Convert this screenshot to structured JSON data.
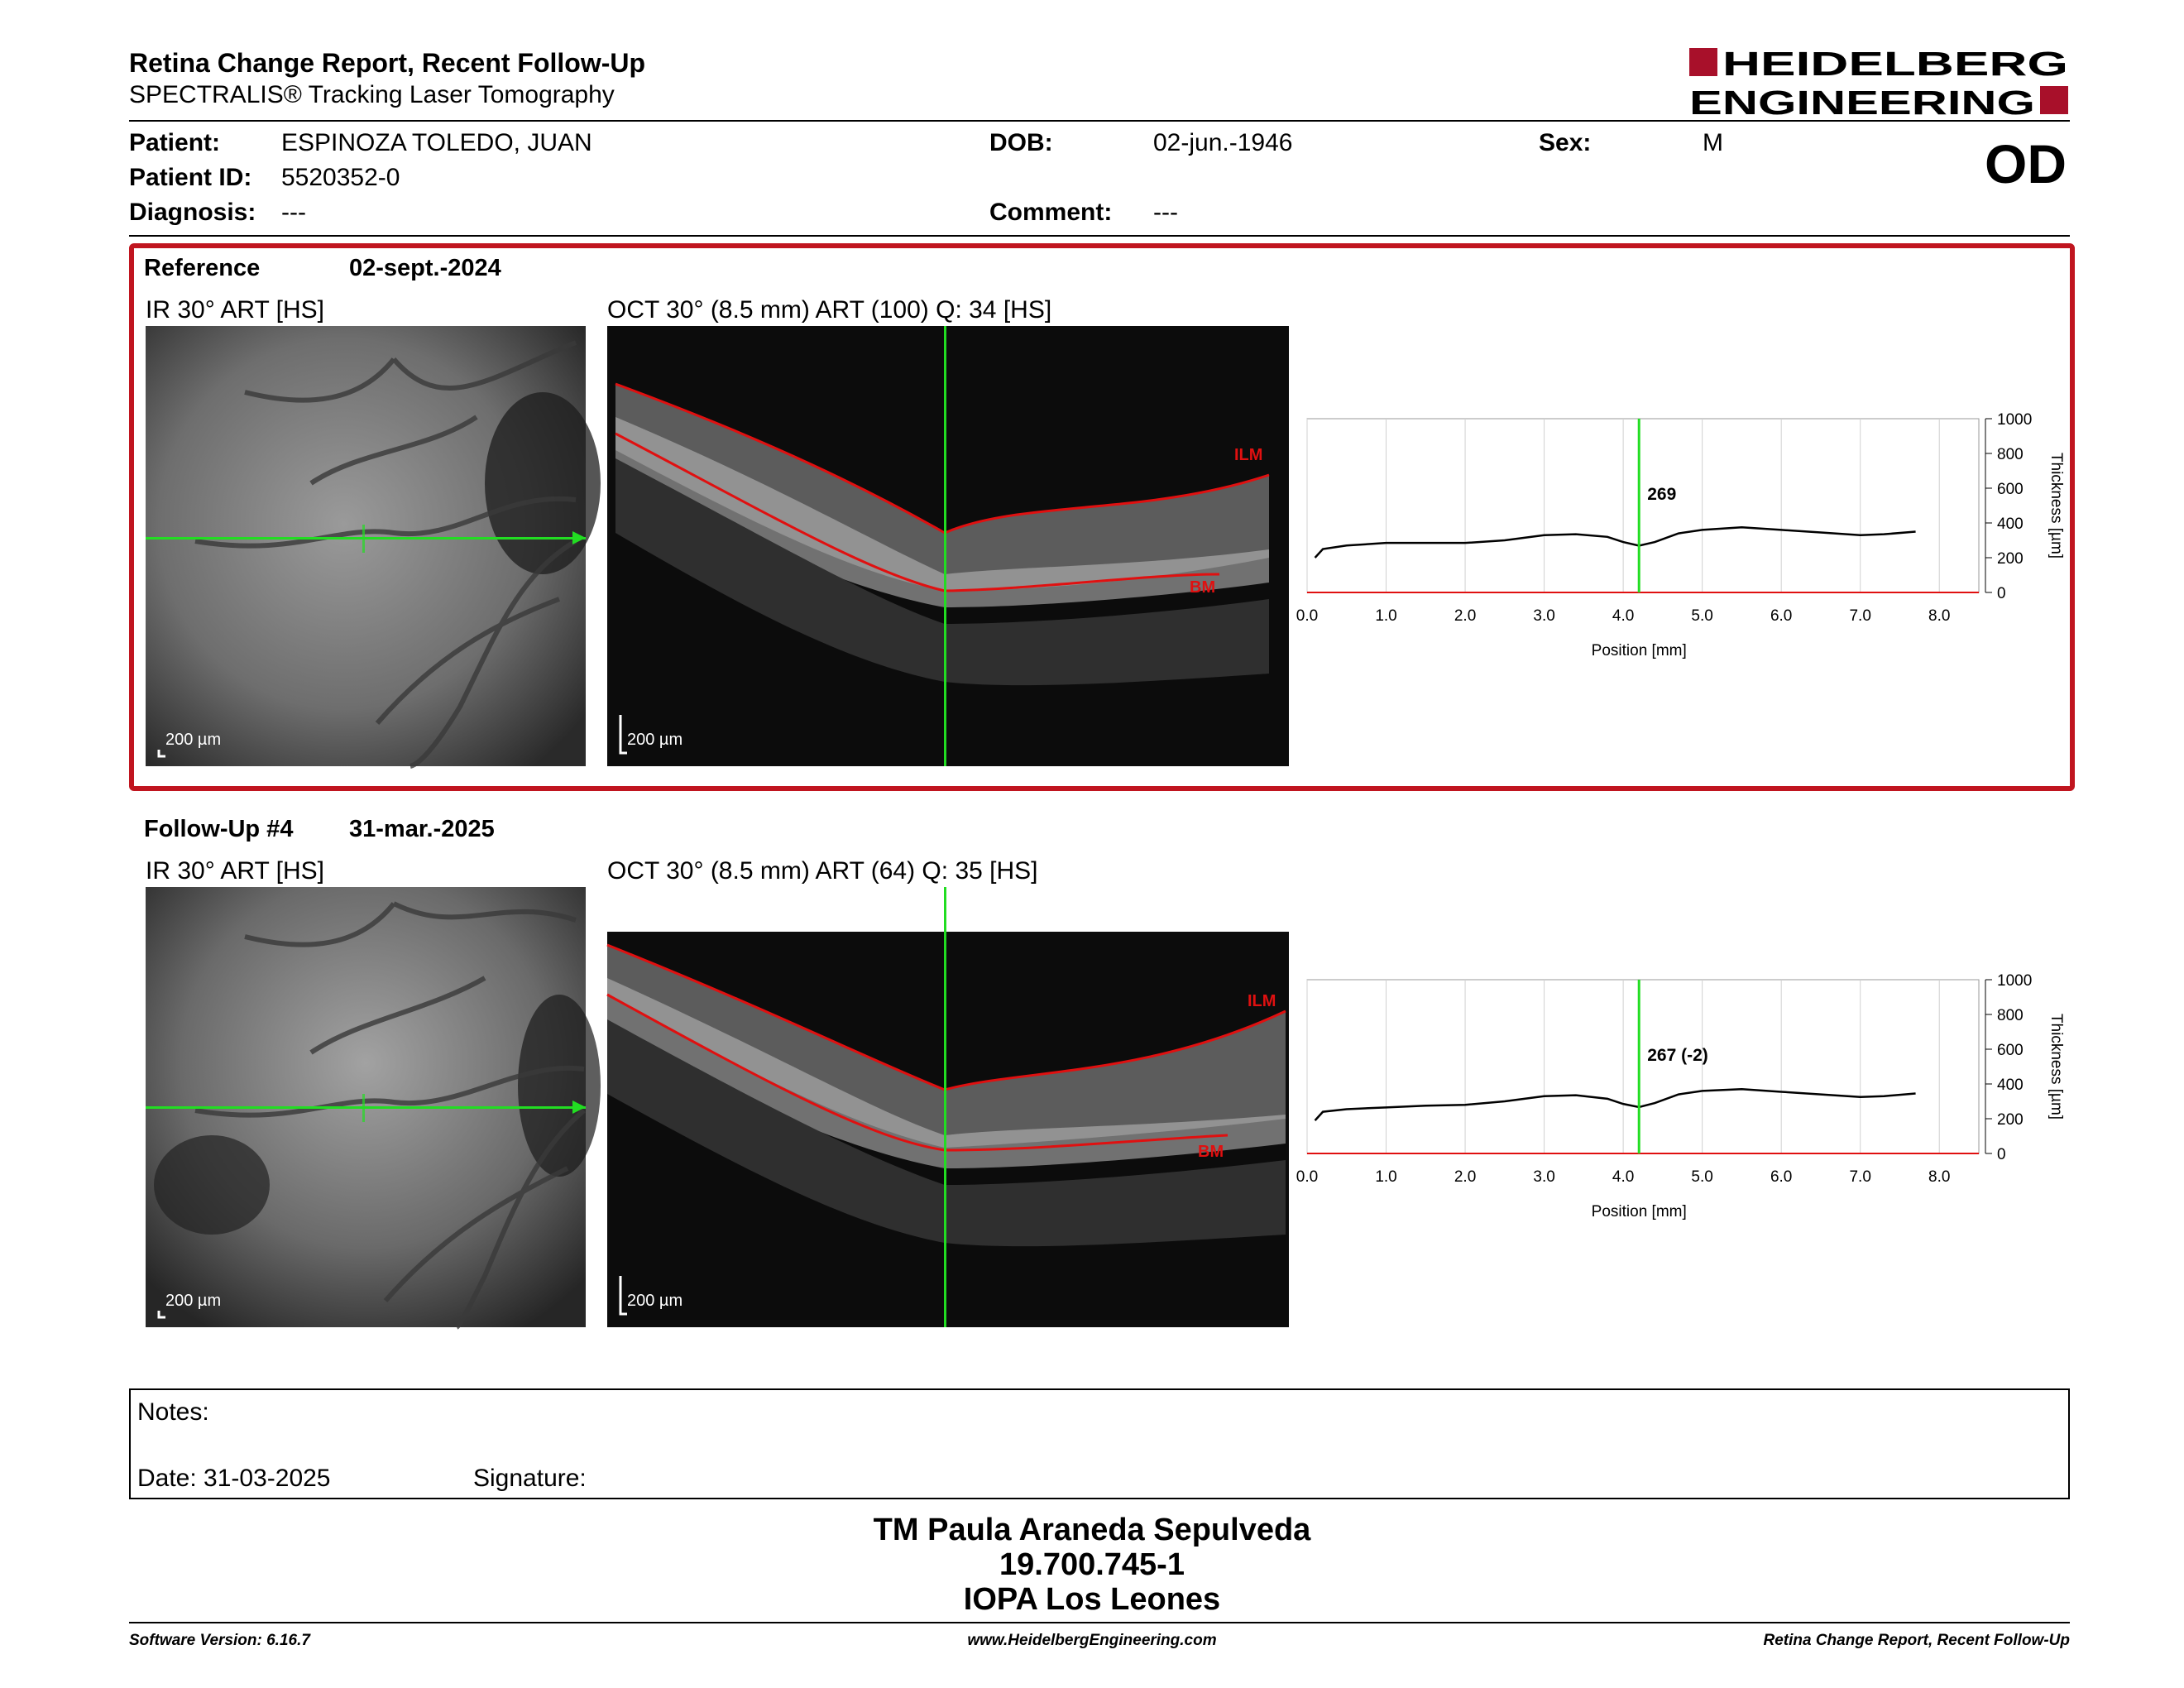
{
  "header": {
    "title": "Retina Change Report, Recent Follow-Up",
    "subtitle": "SPECTRALIS® Tracking Laser Tomography",
    "logo_line1": "HEIDELBERG",
    "logo_line2": "ENGINEERING",
    "eye": "OD"
  },
  "patient": {
    "name_label": "Patient:",
    "name": "ESPINOZA TOLEDO, JUAN",
    "id_label": "Patient ID:",
    "id": "5520352-0",
    "diagnosis_label": "Diagnosis:",
    "diagnosis": "---",
    "dob_label": "DOB:",
    "dob": "02-jun.-1946",
    "comment_label": "Comment:",
    "comment": "---",
    "sex_label": "Sex:",
    "sex": "M"
  },
  "reference": {
    "label": "Reference",
    "date": "02-sept.-2024",
    "ir_label": "IR 30° ART [HS]",
    "oct_label": "OCT 30° (8.5 mm) ART (100) Q: 34 [HS]",
    "scale_ir": "200 µm",
    "scale_oct": "200 µm",
    "layer_top": "ILM",
    "layer_bottom": "BM"
  },
  "followup": {
    "label": "Follow-Up #4",
    "date": "31-mar.-2025",
    "ir_label": "IR 30° ART [HS]",
    "oct_label": "OCT 30° (8.5 mm) ART (64) Q: 35 [HS]",
    "scale_ir": "200 µm",
    "scale_oct": "200 µm",
    "layer_top": "ILM",
    "layer_bottom": "BM"
  },
  "notes": {
    "label": "Notes:",
    "date": "Date: 31-03-2025",
    "signature": "Signature:"
  },
  "signer": {
    "name": "TM Paula Araneda Sepulveda",
    "id": "19.700.745-1",
    "institution": "IOPA Los Leones"
  },
  "footer": {
    "software": "Software Version: 6.16.7",
    "website": "www.HeidelbergEngineering.com",
    "report": "Retina Change Report, Recent Follow-Up"
  },
  "colors": {
    "frame": "#c0151f",
    "logo": "#a8102a",
    "scan_line": "#22dd22",
    "segmentation": "#e01010"
  },
  "chart_data": [
    {
      "type": "line",
      "name": "reference-thickness",
      "xlabel": "Position [mm]",
      "ylabel": "Thickness [µm]",
      "xlim": [
        0,
        8.5
      ],
      "ylim": [
        0,
        1000
      ],
      "xticks": [
        "0.0",
        "1.0",
        "2.0",
        "3.0",
        "4.0",
        "5.0",
        "6.0",
        "7.0",
        "8.0"
      ],
      "yticks": [
        "0",
        "200",
        "400",
        "600",
        "800",
        "1000"
      ],
      "grid": true,
      "marker_x": 4.2,
      "marker_label": "269",
      "series": [
        {
          "x": [
            0.1,
            0.2,
            0.5,
            1.0,
            1.5,
            2.0,
            2.5,
            3.0,
            3.4,
            3.8,
            4.0,
            4.2,
            4.4,
            4.7,
            5.0,
            5.5,
            6.0,
            6.5,
            7.0,
            7.3,
            7.7
          ],
          "values": [
            200,
            250,
            270,
            285,
            285,
            285,
            300,
            330,
            335,
            320,
            290,
            269,
            290,
            340,
            360,
            375,
            360,
            345,
            330,
            335,
            350
          ]
        }
      ]
    },
    {
      "type": "line",
      "name": "followup-thickness",
      "xlabel": "Position [mm]",
      "ylabel": "Thickness [µm]",
      "xlim": [
        0,
        8.5
      ],
      "ylim": [
        0,
        1000
      ],
      "xticks": [
        "0.0",
        "1.0",
        "2.0",
        "3.0",
        "4.0",
        "5.0",
        "6.0",
        "7.0",
        "8.0"
      ],
      "yticks": [
        "0",
        "200",
        "400",
        "600",
        "800",
        "1000"
      ],
      "grid": true,
      "marker_x": 4.2,
      "marker_label": "267 (-2)",
      "series": [
        {
          "x": [
            0.1,
            0.2,
            0.5,
            1.0,
            1.5,
            2.0,
            2.5,
            3.0,
            3.4,
            3.8,
            4.0,
            4.2,
            4.4,
            4.7,
            5.0,
            5.5,
            6.0,
            6.5,
            7.0,
            7.3,
            7.7
          ],
          "values": [
            190,
            240,
            255,
            265,
            275,
            280,
            300,
            330,
            335,
            315,
            285,
            267,
            290,
            340,
            360,
            370,
            355,
            340,
            325,
            330,
            345
          ]
        }
      ]
    }
  ]
}
